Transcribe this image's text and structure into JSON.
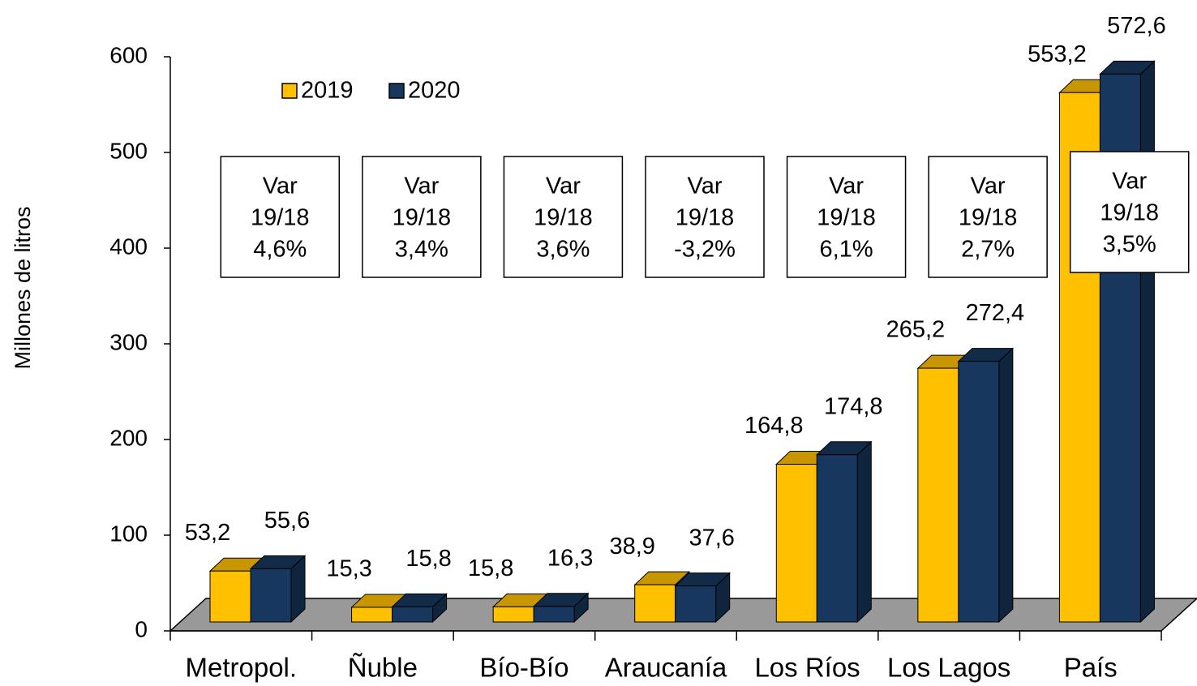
{
  "chart_data": {
    "type": "bar3d",
    "y_label": "Millones de litros",
    "categories": [
      "Metropol.",
      "Ñuble",
      "Bío-Bío",
      "Araucanía",
      "Los Ríos",
      "Los Lagos",
      "País"
    ],
    "series": [
      {
        "name": "2019",
        "color": "#FFC000",
        "values": [
          53.2,
          15.3,
          15.8,
          38.9,
          164.8,
          265.2,
          553.2
        ],
        "value_labels": [
          "53,2",
          "15,3",
          "15,8",
          "38,9",
          "164,8",
          "265,2",
          "553,2"
        ]
      },
      {
        "name": "2020",
        "color": "#17375E",
        "values": [
          55.6,
          15.8,
          16.3,
          37.6,
          174.8,
          272.4,
          572.6
        ],
        "value_labels": [
          "55,6",
          "15,8",
          "16,3",
          "37,6",
          "174,8",
          "272,4",
          "572,6"
        ]
      }
    ],
    "annotations": [
      [
        "Var",
        "19/18",
        "4,6%"
      ],
      [
        "Var",
        "19/18",
        "3,4%"
      ],
      [
        "Var",
        "19/18",
        "3,6%"
      ],
      [
        "Var",
        "19/18",
        "-3,2%"
      ],
      [
        "Var",
        "19/18",
        "6,1%"
      ],
      [
        "Var",
        "19/18",
        "2,7%"
      ],
      [
        "Var",
        "19/18",
        "3,5%"
      ]
    ],
    "ylim": [
      0,
      600
    ],
    "yticks": [
      0,
      100,
      200,
      300,
      400,
      500,
      600
    ],
    "legend": "top-left"
  }
}
